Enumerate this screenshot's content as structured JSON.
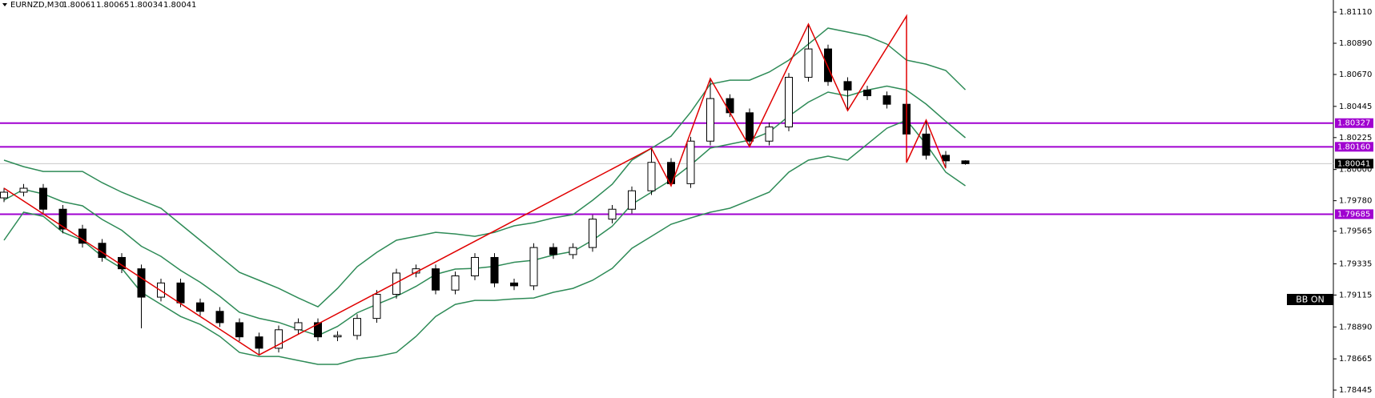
{
  "chart_data": {
    "type": "candlestick",
    "symbol": "EURNZD,M30",
    "open": [
      1.798,
      1.7984,
      1.79868,
      1.7972,
      1.7958,
      1.7948,
      1.7938,
      1.793,
      1.791,
      1.792,
      1.7906,
      1.79,
      1.7892,
      1.7882,
      1.7874,
      1.7887,
      1.7892,
      1.7882,
      1.7883,
      1.7895,
      1.7912,
      1.7927,
      1.793,
      1.7915,
      1.7925,
      1.7938,
      1.792,
      1.7918,
      1.7945,
      1.794,
      1.7945,
      1.7965,
      1.7972,
      1.7985,
      1.8005,
      1.799,
      1.802,
      1.805,
      1.804,
      1.802,
      1.803,
      1.8065,
      1.8085,
      1.8062,
      1.8056,
      1.8052,
      1.8046,
      1.8025,
      1.801,
      1.80061
    ],
    "high": [
      1.7987,
      1.79898,
      1.79898,
      1.7975,
      1.7961,
      1.7951,
      1.7941,
      1.7933,
      1.7923,
      1.7923,
      1.7909,
      1.7903,
      1.7895,
      1.7885,
      1.789,
      1.7895,
      1.7895,
      1.7886,
      1.7898,
      1.7915,
      1.793,
      1.7933,
      1.7933,
      1.7928,
      1.7941,
      1.7941,
      1.7923,
      1.7948,
      1.7948,
      1.7948,
      1.7968,
      1.7975,
      1.7988,
      1.8015,
      1.8008,
      1.8023,
      1.80641,
      1.8053,
      1.8043,
      1.8033,
      1.8068,
      1.81025,
      1.8088,
      1.8065,
      1.8059,
      1.8055,
      1.81082,
      1.80348,
      1.8013,
      1.80065
    ],
    "low": [
      1.7977,
      1.7981,
      1.7969,
      1.7955,
      1.7945,
      1.7935,
      1.7927,
      1.7888,
      1.7907,
      1.7903,
      1.7897,
      1.7889,
      1.7879,
      1.78693,
      1.7871,
      1.7884,
      1.7879,
      1.7879,
      1.788,
      1.7892,
      1.7909,
      1.7924,
      1.7912,
      1.7912,
      1.7922,
      1.7917,
      1.7915,
      1.7915,
      1.7937,
      1.7937,
      1.7942,
      1.7962,
      1.7969,
      1.7982,
      1.79885,
      1.7987,
      1.8017,
      1.8037,
      1.80161,
      1.8017,
      1.8027,
      1.8062,
      1.8059,
      1.80416,
      1.8049,
      1.8043,
      1.80049,
      1.8007,
      1.80009,
      1.80034
    ],
    "close": [
      1.7984,
      1.79868,
      1.7972,
      1.7958,
      1.7948,
      1.7938,
      1.793,
      1.791,
      1.792,
      1.7906,
      1.79,
      1.7892,
      1.7882,
      1.7874,
      1.7887,
      1.7892,
      1.7882,
      1.7883,
      1.7895,
      1.7912,
      1.7927,
      1.793,
      1.7915,
      1.7925,
      1.7938,
      1.792,
      1.7918,
      1.7945,
      1.794,
      1.7945,
      1.7965,
      1.7972,
      1.7985,
      1.8005,
      1.799,
      1.802,
      1.805,
      1.804,
      1.802,
      1.803,
      1.8065,
      1.8085,
      1.8062,
      1.8056,
      1.8052,
      1.8046,
      1.8025,
      1.801,
      1.80061,
      1.80041
    ],
    "bands": {
      "color": "#2e8b57",
      "upper": [
        1.80066,
        1.8002,
        1.79986,
        1.79986,
        1.79986,
        1.79907,
        1.7984,
        1.79783,
        1.79727,
        1.79614,
        1.79501,
        1.79388,
        1.79275,
        1.79219,
        1.79162,
        1.79094,
        1.79032,
        1.79162,
        1.79315,
        1.79416,
        1.79501,
        1.79529,
        1.79557,
        1.79546,
        1.79529,
        1.79557,
        1.79603,
        1.79625,
        1.79659,
        1.79682,
        1.79783,
        1.79896,
        1.80066,
        1.8015,
        1.80235,
        1.80404,
        1.80602,
        1.8063,
        1.8063,
        1.80687,
        1.80771,
        1.80884,
        1.80997,
        1.80969,
        1.80941,
        1.80884,
        1.80771,
        1.80743,
        1.80698,
        1.80562
      ],
      "middle": [
        1.79784,
        1.7986,
        1.79828,
        1.79772,
        1.79744,
        1.79648,
        1.79572,
        1.79459,
        1.79388,
        1.79289,
        1.79205,
        1.79106,
        1.78993,
        1.78951,
        1.78922,
        1.78874,
        1.78829,
        1.78894,
        1.7899,
        1.79049,
        1.79106,
        1.79176,
        1.79261,
        1.79298,
        1.79303,
        1.79317,
        1.79346,
        1.7936,
        1.79397,
        1.79422,
        1.79501,
        1.796,
        1.79755,
        1.7984,
        1.79925,
        1.80032,
        1.80151,
        1.80179,
        1.80207,
        1.80264,
        1.80376,
        1.80475,
        1.80546,
        1.80518,
        1.8056,
        1.80588,
        1.8056,
        1.80461,
        1.8034,
        1.80224
      ],
      "lower": [
        1.79501,
        1.79699,
        1.7967,
        1.79557,
        1.79501,
        1.79388,
        1.79303,
        1.79134,
        1.79049,
        1.78964,
        1.78908,
        1.78823,
        1.7871,
        1.78682,
        1.78682,
        1.78654,
        1.78626,
        1.78626,
        1.78665,
        1.78682,
        1.7871,
        1.78823,
        1.78964,
        1.79049,
        1.79077,
        1.79077,
        1.79088,
        1.79094,
        1.79134,
        1.79162,
        1.79219,
        1.79303,
        1.79444,
        1.79529,
        1.79614,
        1.79659,
        1.79699,
        1.79727,
        1.79783,
        1.7984,
        1.79981,
        1.80066,
        1.80094,
        1.80066,
        1.80178,
        1.80291,
        1.80348,
        1.80178,
        1.79981,
        1.79885
      ]
    },
    "zigzag": {
      "color": "#e00000",
      "x": [
        0,
        13,
        33,
        34,
        36,
        38,
        41,
        43,
        46,
        46,
        47,
        48
      ],
      "values": [
        1.79868,
        1.78693,
        1.8015,
        1.79885,
        1.80641,
        1.80161,
        1.81025,
        1.80416,
        1.81082,
        1.80049,
        1.80348,
        1.80009
      ]
    },
    "hlines": [
      1.80327,
      {
        "value": 1.8016,
        "label": "1.80160"
      },
      1.79685
    ],
    "hline_color": "#a000d0",
    "indicator_label": "BB ON",
    "ylim": [
      1.78389,
      1.81195
    ],
    "yticks": [
      {
        "value": 1.8111,
        "label": "1.81110"
      },
      {
        "value": 1.8089,
        "label": "1.80890"
      },
      {
        "value": 1.8067,
        "label": "1.80670"
      },
      1.80445,
      {
        "value": 1.80225,
        "label": "1.80225"
      },
      {
        "value": 1.8,
        "label": "1.80000"
      },
      {
        "value": 1.7978,
        "label": "1.79780"
      },
      1.79565,
      1.79335,
      1.79115,
      {
        "value": 1.7889,
        "label": "1.78890"
      },
      1.78665,
      1.78445
    ]
  }
}
